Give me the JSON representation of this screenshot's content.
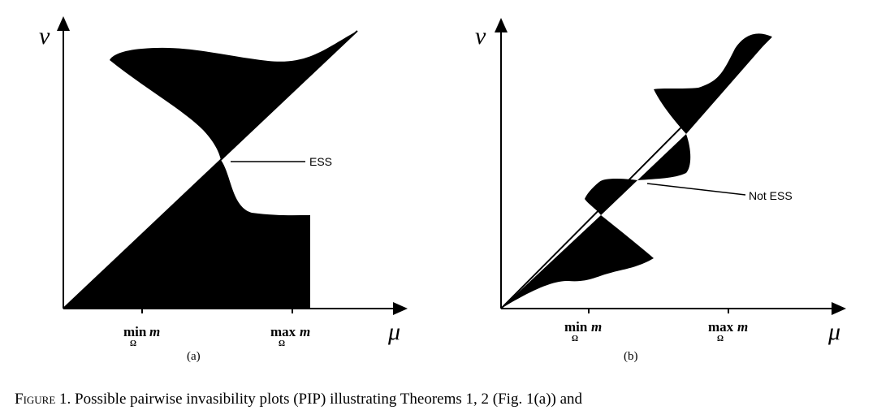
{
  "panels": [
    {
      "y_label": "ν",
      "x_label": "μ",
      "ticks": [
        {
          "op": "min",
          "sub": "Ω",
          "var": "m"
        },
        {
          "op": "max",
          "sub": "Ω",
          "var": "m"
        }
      ],
      "annotation": "ESS",
      "caption": "(a)"
    },
    {
      "y_label": "ν",
      "x_label": "μ",
      "ticks": [
        {
          "op": "min",
          "sub": "Ω",
          "var": "m"
        },
        {
          "op": "max",
          "sub": "Ω",
          "var": "m"
        }
      ],
      "annotation": "Not ESS",
      "caption": "(b)"
    }
  ],
  "figure_caption": {
    "label": "Figure 1.",
    "text": "Possible pairwise invasibility plots (PIP) illustrating Theorems 1, 2 (Fig. 1(a)) and"
  }
}
